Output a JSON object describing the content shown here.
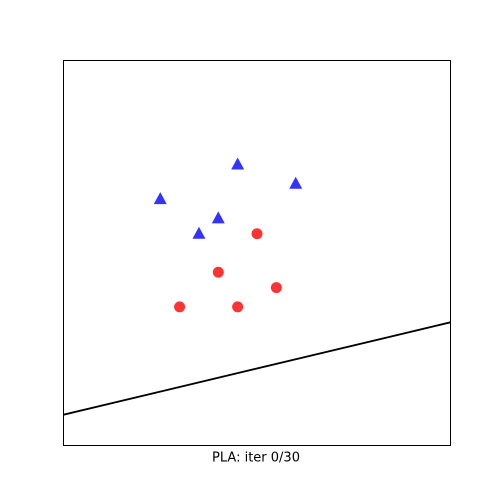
{
  "chart_data": {
    "type": "scatter",
    "xlabel": "PLA: iter 0/30",
    "xlim": [
      0,
      10
    ],
    "ylim": [
      0,
      10
    ],
    "series": [
      {
        "marker": "triangle",
        "color": "#0000ff",
        "x": [
          2.5,
          4.5,
          6.0,
          4.0,
          3.5
        ],
        "y": [
          6.4,
          7.3,
          6.8,
          5.9,
          5.5
        ]
      },
      {
        "marker": "circle",
        "color": "#ff0000",
        "x": [
          5.0,
          4.0,
          5.5,
          3.0,
          4.5
        ],
        "y": [
          5.5,
          4.5,
          4.1,
          3.6,
          3.6
        ]
      }
    ],
    "line": {
      "color": "#000000",
      "x": [
        0,
        10
      ],
      "y": [
        0.8,
        3.2
      ]
    }
  }
}
